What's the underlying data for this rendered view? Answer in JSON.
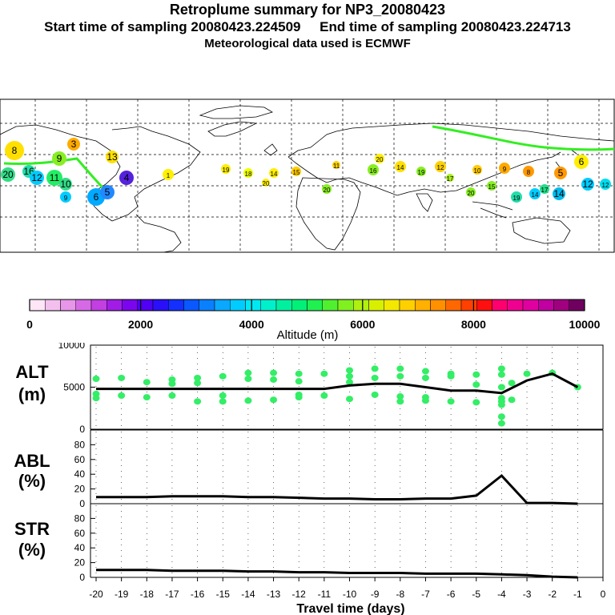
{
  "header": {
    "title": "Retroplume summary for NP3_20080423",
    "sampling": "Start time of sampling 20080423.224509     End time of sampling 20080423.224713",
    "met": "Meteorological data used is ECMWF"
  },
  "map": {
    "labels": [
      "1",
      "2",
      "3",
      "4",
      "5",
      "6",
      "7",
      "8",
      "9",
      "10",
      "11",
      "12",
      "13",
      "14",
      "15",
      "16",
      "17",
      "18",
      "19",
      "20"
    ]
  },
  "colorbar": {
    "ticks": [
      "0",
      "2000",
      "4000",
      "6000",
      "8000",
      "10000"
    ],
    "label": "Altitude (m)",
    "colors": [
      "#fde6f6",
      "#f3c0ee",
      "#e796ea",
      "#d66ae6",
      "#c23fe2",
      "#a11de6",
      "#7b06ee",
      "#5000f2",
      "#2a10f8",
      "#1430ff",
      "#0a58ff",
      "#0a80ff",
      "#0aa8ff",
      "#00ccff",
      "#00e8f2",
      "#00f0cc",
      "#00f0a0",
      "#00f078",
      "#20f050",
      "#50f030",
      "#80f020",
      "#b0f010",
      "#d8f000",
      "#f4e800",
      "#ffd000",
      "#ffb000",
      "#ff9000",
      "#ff6800",
      "#ff4000",
      "#ff1010",
      "#ff0070",
      "#f00090",
      "#e000a0",
      "#c000a0",
      "#a00080",
      "#700060"
    ]
  },
  "chart_data": [
    {
      "type": "scatter",
      "title": "",
      "ylabel": "ALT\n(m)",
      "ylim": [
        0,
        10000
      ],
      "yticks": [
        "10000",
        "5000",
        "0"
      ],
      "x": [
        -20,
        -19,
        -18,
        -17,
        -16,
        -15,
        -14,
        -13,
        -12,
        -11,
        -10,
        -9,
        -8,
        -7,
        -6,
        -5,
        -4,
        -3,
        -2,
        -1
      ],
      "mean_line": [
        4800,
        4800,
        4800,
        4800,
        4800,
        4800,
        4800,
        4800,
        4800,
        4800,
        5200,
        5400,
        5400,
        5000,
        4600,
        4600,
        4300,
        5800,
        6600,
        5000
      ],
      "points": [
        [
          -20,
          6000
        ],
        [
          -20,
          4200
        ],
        [
          -20,
          3700
        ],
        [
          -19,
          6100
        ],
        [
          -19,
          4000
        ],
        [
          -18,
          5600
        ],
        [
          -18,
          3800
        ],
        [
          -17,
          5900
        ],
        [
          -17,
          5400
        ],
        [
          -17,
          4000
        ],
        [
          -16,
          6100
        ],
        [
          -16,
          5500
        ],
        [
          -16,
          3300
        ],
        [
          -15,
          6300
        ],
        [
          -15,
          4000
        ],
        [
          -15,
          3300
        ],
        [
          -14,
          6700
        ],
        [
          -14,
          6000
        ],
        [
          -14,
          3400
        ],
        [
          -13,
          6700
        ],
        [
          -13,
          5900
        ],
        [
          -13,
          3500
        ],
        [
          -12,
          6600
        ],
        [
          -12,
          5700
        ],
        [
          -12,
          4100
        ],
        [
          -12,
          3800
        ],
        [
          -11,
          6600
        ],
        [
          -11,
          4000
        ],
        [
          -10,
          7000
        ],
        [
          -10,
          6300
        ],
        [
          -10,
          5600
        ],
        [
          -10,
          3600
        ],
        [
          -9,
          7200
        ],
        [
          -9,
          6100
        ],
        [
          -9,
          4100
        ],
        [
          -8,
          7200
        ],
        [
          -8,
          6300
        ],
        [
          -8,
          3900
        ],
        [
          -8,
          3300
        ],
        [
          -7,
          6900
        ],
        [
          -7,
          6100
        ],
        [
          -7,
          3800
        ],
        [
          -7,
          3400
        ],
        [
          -6,
          6600
        ],
        [
          -6,
          6300
        ],
        [
          -6,
          3300
        ],
        [
          -5,
          6500
        ],
        [
          -5,
          5300
        ],
        [
          -5,
          3200
        ],
        [
          -4,
          7200
        ],
        [
          -4,
          6500
        ],
        [
          -4,
          5000
        ],
        [
          -4,
          3700
        ],
        [
          -4,
          3300
        ],
        [
          -4,
          2900
        ],
        [
          -4,
          1500
        ],
        [
          -4,
          700
        ],
        [
          -3.6,
          5500
        ],
        [
          -3.6,
          3500
        ],
        [
          -3,
          6600
        ],
        [
          -2,
          6700
        ],
        [
          -1,
          5000
        ]
      ]
    },
    {
      "type": "line",
      "ylabel": "ABL\n(%)",
      "ylim": [
        0,
        90
      ],
      "yticks": [
        "80",
        "60",
        "40",
        "20",
        "0"
      ],
      "x": [
        -20,
        -19,
        -18,
        -17,
        -16,
        -15,
        -14,
        -13,
        -12,
        -11,
        -10,
        -9,
        -8,
        -7,
        -6,
        -5,
        -4,
        -3,
        -2,
        -1
      ],
      "values": [
        9,
        9,
        9,
        10,
        10,
        10,
        9,
        9,
        8,
        7,
        7,
        6,
        6,
        7,
        7,
        11,
        38,
        1,
        1,
        0
      ]
    },
    {
      "type": "line",
      "ylabel": "STR\n(%)",
      "ylim": [
        0,
        90
      ],
      "yticks": [
        "80",
        "60",
        "40",
        "20",
        "0"
      ],
      "x": [
        -20,
        -19,
        -18,
        -17,
        -16,
        -15,
        -14,
        -13,
        -12,
        -11,
        -10,
        -9,
        -8,
        -7,
        -6,
        -5,
        -4,
        -3,
        -2,
        -1
      ],
      "values": [
        10,
        10,
        10,
        9,
        9,
        9,
        8,
        8,
        7,
        7,
        6,
        6,
        6,
        5,
        5,
        5,
        4,
        3,
        1,
        0
      ],
      "xlabel": "Travel time (days)",
      "xticks": [
        "-20",
        "-19",
        "-18",
        "-17",
        "-16",
        "-15",
        "-14",
        "-13",
        "-12",
        "-11",
        "-10",
        "-9",
        "-8",
        "-7",
        "-6",
        "-5",
        "-4",
        "-3",
        "-2",
        "-1",
        "0"
      ]
    }
  ],
  "colors": {
    "points": "#33ee66",
    "line": "#000000"
  }
}
